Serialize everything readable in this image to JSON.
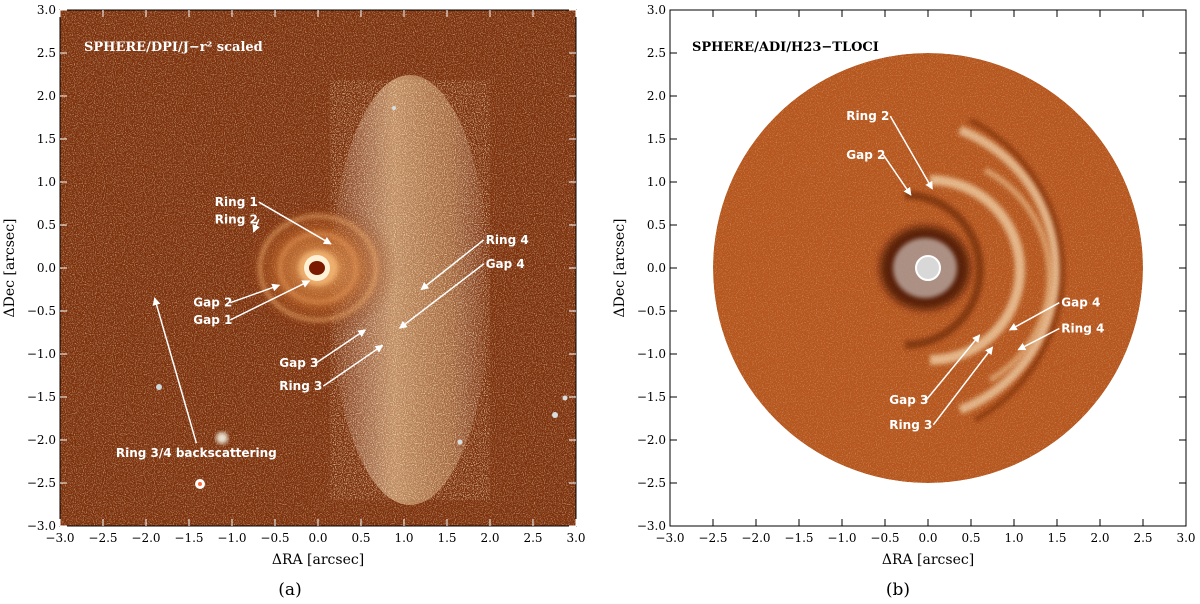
{
  "panels": [
    {
      "title": "SPHERE/DPI/J−r² scaled",
      "xlabel": "ΔRA [arcsec]",
      "ylabel": "ΔDec [arcsec]",
      "caption": "(a)",
      "annotations": [
        {
          "text": "Ring 1",
          "x": -1.2,
          "y": 0.72,
          "ax": 0.15,
          "ay": 0.28
        },
        {
          "text": "Ring 2",
          "x": -1.2,
          "y": 0.52,
          "ax": -0.75,
          "ay": 0.42
        },
        {
          "text": "Ring 4",
          "x": 1.95,
          "y": 0.28,
          "ax": 1.2,
          "ay": -0.25
        },
        {
          "text": "Gap 4",
          "x": 1.95,
          "y": 0.0,
          "ax": 0.95,
          "ay": -0.7
        },
        {
          "text": "Gap 2",
          "x": -1.45,
          "y": -0.45,
          "ax": -0.45,
          "ay": -0.2
        },
        {
          "text": "Gap 1",
          "x": -1.45,
          "y": -0.65,
          "ax": -0.1,
          "ay": -0.15
        },
        {
          "text": "Gap 3",
          "x": -0.45,
          "y": -1.15,
          "ax": 0.55,
          "ay": -0.72
        },
        {
          "text": "Ring 3",
          "x": -0.45,
          "y": -1.42,
          "ax": 0.75,
          "ay": -0.9
        },
        {
          "text": "Ring 3/4 backscattering",
          "x": -2.35,
          "y": -2.2,
          "ax": -1.9,
          "ay": -0.35
        }
      ]
    },
    {
      "title": "SPHERE/ADI/H23−TLOCI",
      "xlabel": "ΔRA [arcsec]",
      "ylabel": "ΔDec [arcsec]",
      "caption": "(b)",
      "annotations": [
        {
          "text": "Ring 2",
          "x": -0.95,
          "y": 1.72,
          "ax": 0.05,
          "ay": 0.92
        },
        {
          "text": "Gap 2",
          "x": -0.95,
          "y": 1.27,
          "ax": -0.2,
          "ay": 0.85
        },
        {
          "text": "Gap 4",
          "x": 1.55,
          "y": -0.45,
          "ax": 0.95,
          "ay": -0.72
        },
        {
          "text": "Ring 4",
          "x": 1.55,
          "y": -0.75,
          "ax": 1.05,
          "ay": -0.95
        },
        {
          "text": "Gap 3",
          "x": -0.45,
          "y": -1.58,
          "ax": 0.6,
          "ay": -0.78
        },
        {
          "text": "Ring 3",
          "x": -0.45,
          "y": -1.87,
          "ax": 0.75,
          "ay": -0.92
        }
      ]
    }
  ],
  "axes": {
    "xlim": [
      -3.0,
      3.0
    ],
    "ylim": [
      -3.0,
      3.0
    ],
    "ticks": [
      "−3.0",
      "−2.5",
      "−2.0",
      "−1.5",
      "−1.0",
      "−0.5",
      "0.0",
      "0.5",
      "1.0",
      "1.5",
      "2.0",
      "2.5",
      "3.0"
    ],
    "tick_values": [
      -3.0,
      -2.5,
      -2.0,
      -1.5,
      -1.0,
      -0.5,
      0.0,
      0.5,
      1.0,
      1.5,
      2.0,
      2.5,
      3.0
    ]
  },
  "colors": {
    "background_dark": "#6a2408",
    "background_mid": "#a8501c",
    "bright": "#ffe2b0",
    "field_b": "#b5561e",
    "text_a": "#ffffff",
    "text_b": "#000000"
  }
}
